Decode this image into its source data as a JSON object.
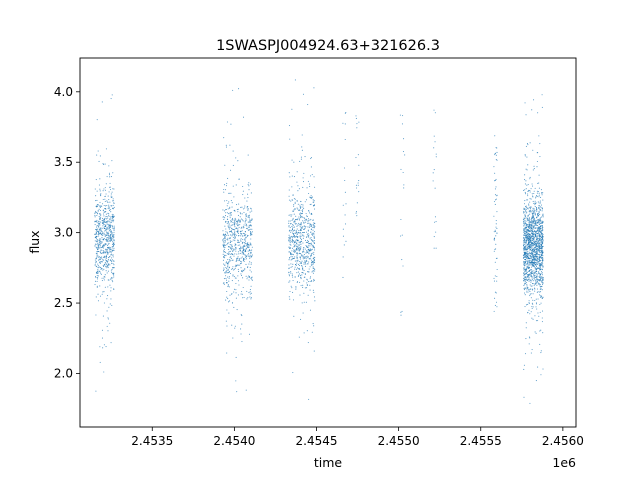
{
  "chart_data": {
    "type": "scatter",
    "title": "1SWASPJ004924.63+321626.3",
    "xlabel": "time",
    "ylabel": "flux",
    "x_offset_label": "1e6",
    "xlim": [
      2453060,
      2456080
    ],
    "ylim": [
      1.62,
      4.24
    ],
    "x_ticks": [
      {
        "value": 2453500,
        "label": "2.4535"
      },
      {
        "value": 2454000,
        "label": "2.4540"
      },
      {
        "value": 2454500,
        "label": "2.4545"
      },
      {
        "value": 2455000,
        "label": "2.4550"
      },
      {
        "value": 2455500,
        "label": "2.4555"
      },
      {
        "value": 2456000,
        "label": "2.4560"
      }
    ],
    "y_ticks": [
      {
        "value": 2.0,
        "label": "2.0"
      },
      {
        "value": 2.5,
        "label": "2.5"
      },
      {
        "value": 3.0,
        "label": "3.0"
      },
      {
        "value": 3.5,
        "label": "3.5"
      },
      {
        "value": 4.0,
        "label": "4.0"
      }
    ],
    "grid": false,
    "marker_color": "#1f77b4",
    "series": [
      {
        "clusters": [
          {
            "x_min": 2453150,
            "x_max": 2453270,
            "y_center": 2.95,
            "y_min": 1.8,
            "y_max": 4.03,
            "density": "high"
          },
          {
            "x_min": 2453930,
            "x_max": 2454110,
            "y_center": 2.92,
            "y_min": 1.77,
            "y_max": 4.05,
            "density": "high"
          },
          {
            "x_min": 2454330,
            "x_max": 2454490,
            "y_center": 2.93,
            "y_min": 1.77,
            "y_max": 4.12,
            "density": "high"
          },
          {
            "x_min": 2454660,
            "x_max": 2454680,
            "y_center": 3.0,
            "y_min": 2.68,
            "y_max": 3.92,
            "density": "low"
          },
          {
            "x_min": 2454740,
            "x_max": 2454760,
            "y_center": 3.2,
            "y_min": 3.1,
            "y_max": 4.0,
            "density": "low"
          },
          {
            "x_min": 2455010,
            "x_max": 2455040,
            "y_center": 3.1,
            "y_min": 2.4,
            "y_max": 3.85,
            "density": "low"
          },
          {
            "x_min": 2455210,
            "x_max": 2455230,
            "y_center": 3.2,
            "y_min": 2.73,
            "y_max": 3.88,
            "density": "low"
          },
          {
            "x_min": 2455580,
            "x_max": 2455600,
            "y_center": 3.3,
            "y_min": 2.42,
            "y_max": 3.7,
            "density": "medium"
          },
          {
            "x_min": 2455760,
            "x_max": 2455880,
            "y_center": 2.9,
            "y_min": 1.74,
            "y_max": 4.11,
            "density": "very-high"
          }
        ]
      }
    ]
  }
}
